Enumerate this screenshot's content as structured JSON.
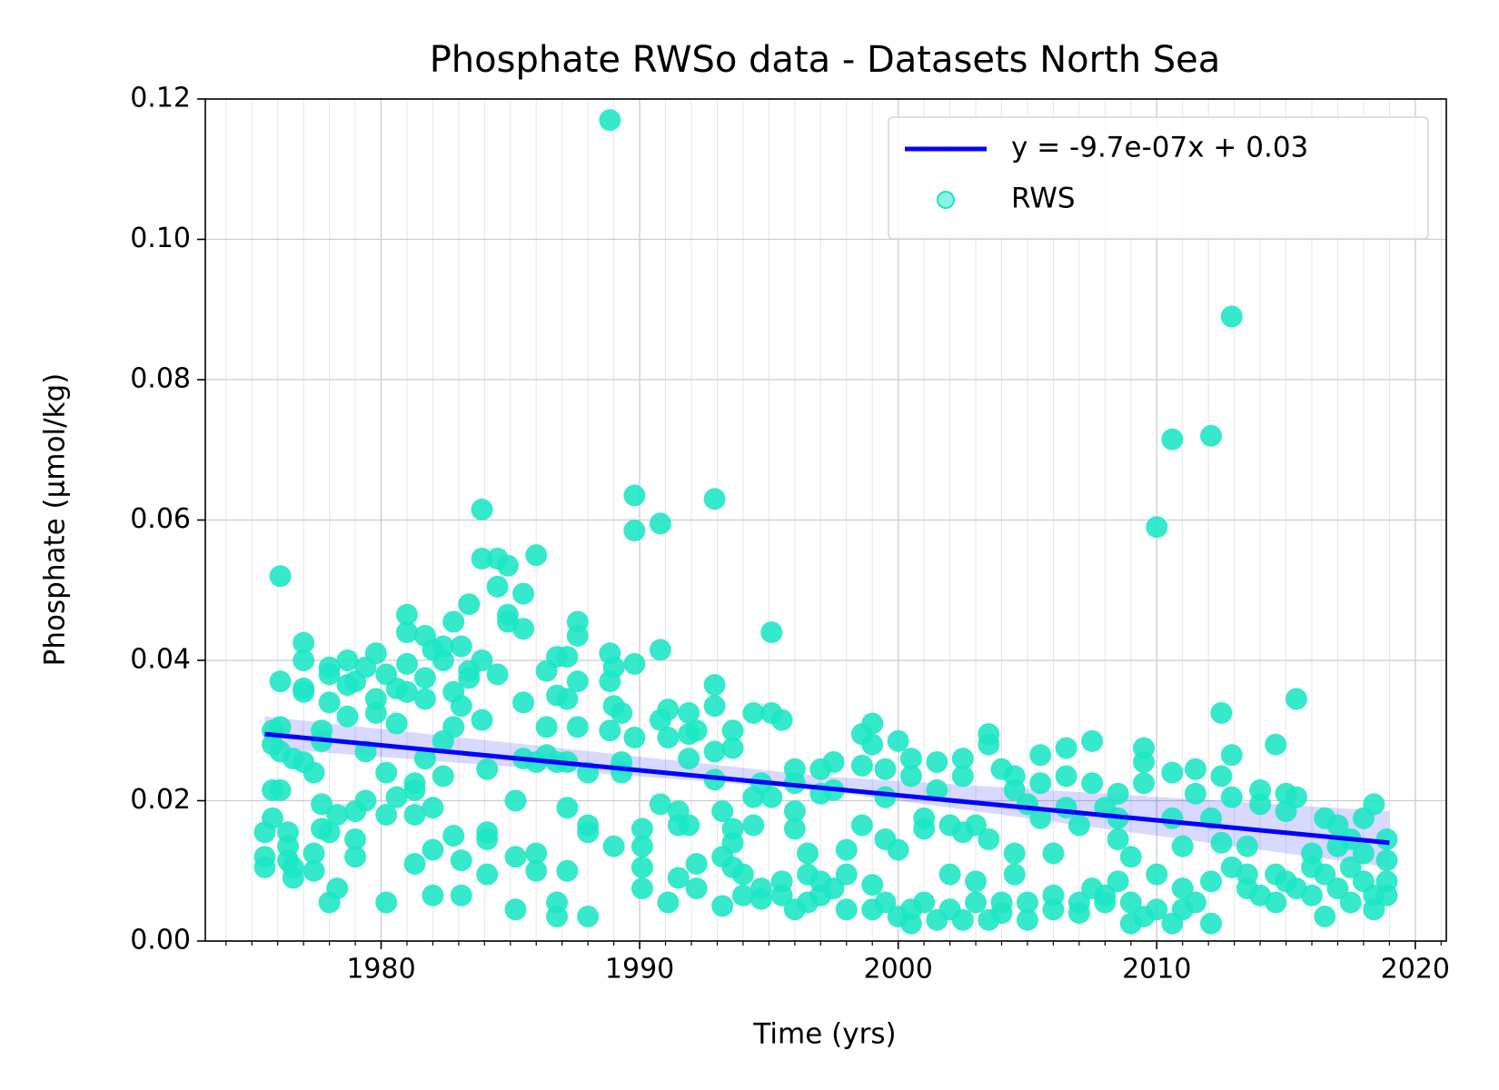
{
  "chart_data": {
    "type": "scatter",
    "title": "Phosphate RWSo data - Datasets North Sea",
    "x_label": "Time (yrs)",
    "y_label": "Phosphate (µmol/kg)",
    "xlim": [
      1973.2,
      2021.2
    ],
    "ylim": [
      0,
      0.12
    ],
    "xticks": [
      1980,
      1990,
      2000,
      2010,
      2020
    ],
    "xminorticks": [
      1974,
      1975,
      1976,
      1977,
      1978,
      1979,
      1981,
      1982,
      1983,
      1984,
      1985,
      1986,
      1987,
      1988,
      1989,
      1991,
      1992,
      1993,
      1994,
      1995,
      1996,
      1997,
      1998,
      1999,
      2001,
      2002,
      2003,
      2004,
      2005,
      2006,
      2007,
      2008,
      2009,
      2011,
      2012,
      2013,
      2014,
      2015,
      2016,
      2017,
      2018,
      2019,
      2021
    ],
    "yticks": [
      {
        "value": 0,
        "label": "0.00"
      },
      0.02,
      0.04,
      0.06,
      0.08,
      {
        "value": 0.1,
        "label": "0.10"
      },
      0.12
    ],
    "grid": true,
    "legend": "upper right",
    "band": {
      "color": "#0000ff",
      "x": [
        1975.5,
        1997,
        2019
      ],
      "lower": [
        0.0275,
        0.0215,
        0.0105
      ],
      "upper": [
        0.032,
        0.0235,
        0.0185
      ]
    },
    "series": [
      {
        "name": "y = -9.7e-07x + 0.03",
        "type": "line",
        "color": "#0000ff",
        "x": [
          1975.5,
          2019
        ],
        "values": [
          0.0295,
          0.014
        ]
      },
      {
        "name": "RWS",
        "type": "scatter",
        "color": "#1ae6c3",
        "x": [
          1975.5,
          1975.5,
          1975.5,
          1975.8,
          1975.8,
          1975.8,
          1975.8,
          1976.1,
          1976.1,
          1976.1,
          1976.1,
          1976.1,
          1976.4,
          1976.4,
          1976.4,
          1976.6,
          1976.6,
          1976.6,
          1977,
          1977,
          1977,
          1977,
          1977,
          1977.4,
          1977.4,
          1977.4,
          1977.7,
          1977.7,
          1977.7,
          1977.7,
          1978,
          1978,
          1978,
          1978,
          1978,
          1978.3,
          1978.3,
          1978.7,
          1978.7,
          1978.7,
          1979,
          1979,
          1979,
          1979,
          1979.4,
          1979.4,
          1979.4,
          1979.8,
          1979.8,
          1979.8,
          1980.2,
          1980.2,
          1980.2,
          1980.2,
          1980.6,
          1980.6,
          1980.6,
          1981,
          1981,
          1981,
          1981,
          1981.3,
          1981.3,
          1981.3,
          1981.3,
          1981.7,
          1981.7,
          1981.7,
          1981.7,
          1982,
          1982,
          1982,
          1982,
          1982.4,
          1982.4,
          1982.4,
          1982.4,
          1982.8,
          1982.8,
          1982.8,
          1982.8,
          1983.1,
          1983.1,
          1983.1,
          1983.1,
          1983.4,
          1983.4,
          1983.4,
          1983.9,
          1983.9,
          1983.9,
          1983.9,
          1984.1,
          1984.1,
          1984.1,
          1984.1,
          1984.5,
          1984.5,
          1984.5,
          1984.9,
          1984.9,
          1984.9,
          1985.2,
          1985.2,
          1985.2,
          1985.5,
          1985.5,
          1985.5,
          1985.5,
          1986,
          1986,
          1986,
          1986,
          1986.4,
          1986.4,
          1986.4,
          1986.8,
          1986.8,
          1986.8,
          1986.8,
          1986.8,
          1987.2,
          1987.2,
          1987.2,
          1987.2,
          1987.2,
          1987.6,
          1987.6,
          1987.6,
          1987.6,
          1988,
          1988,
          1988,
          1988,
          1988.85,
          1988.85,
          1988.85,
          1988.85,
          1989,
          1989,
          1989,
          1989.3,
          1989.3,
          1989.3,
          1989.8,
          1989.8,
          1989.8,
          1989.8,
          1990.1,
          1990.1,
          1990.1,
          1990.1,
          1990.8,
          1990.8,
          1990.8,
          1990.8,
          1991.1,
          1991.1,
          1991.1,
          1991.5,
          1991.5,
          1991.5,
          1991.9,
          1991.9,
          1991.9,
          1991.9,
          1992.2,
          1992.2,
          1992.2,
          1992.9,
          1992.9,
          1992.9,
          1992.9,
          1992.9,
          1993.2,
          1993.2,
          1993.2,
          1993.6,
          1993.6,
          1993.6,
          1993.6,
          1993.6,
          1994,
          1994,
          1994.4,
          1994.4,
          1994.4,
          1994.7,
          1994.7,
          1994.7,
          1995.1,
          1995.1,
          1995.1,
          1995.5,
          1995.5,
          1995.5,
          1996,
          1996,
          1996,
          1996,
          1996,
          1996.5,
          1996.5,
          1996.5,
          1997,
          1997,
          1997,
          1997,
          1997.5,
          1997.5,
          1997.5,
          1998,
          1998,
          1998,
          1998.6,
          1998.6,
          1998.6,
          1999,
          1999,
          1999,
          1999,
          1999.5,
          1999.5,
          1999.5,
          1999.5,
          2000,
          2000,
          2000,
          2000.5,
          2000.5,
          2000.5,
          2000.5,
          2001,
          2001,
          2001,
          2001.5,
          2001.5,
          2001.5,
          2002,
          2002,
          2002,
          2002.5,
          2002.5,
          2002.5,
          2002.5,
          2003,
          2003,
          2003,
          2003.5,
          2003.5,
          2003.5,
          2003.5,
          2004,
          2004,
          2004,
          2004.5,
          2004.5,
          2004.5,
          2004.5,
          2005,
          2005,
          2005,
          2005.5,
          2005.5,
          2005.5,
          2006,
          2006,
          2006,
          2006.5,
          2006.5,
          2006.5,
          2007,
          2007,
          2007,
          2007.5,
          2007.5,
          2007.5,
          2008,
          2008,
          2008,
          2008.5,
          2008.5,
          2008.5,
          2008.5,
          2009,
          2009,
          2009,
          2009.5,
          2009.5,
          2009.5,
          2009.5,
          2010,
          2010,
          2010,
          2010.6,
          2010.6,
          2010.6,
          2010.6,
          2011,
          2011,
          2011,
          2011.5,
          2011.5,
          2011.5,
          2012.1,
          2012.1,
          2012.1,
          2012.1,
          2012.5,
          2012.5,
          2012.5,
          2012.9,
          2012.9,
          2012.9,
          2012.9,
          2013.5,
          2013.5,
          2013.5,
          2014,
          2014,
          2014,
          2014.6,
          2014.6,
          2014.6,
          2015,
          2015,
          2015,
          2015.4,
          2015.4,
          2015.4,
          2016,
          2016,
          2016,
          2016.5,
          2016.5,
          2016.5,
          2017,
          2017,
          2017,
          2017.5,
          2017.5,
          2017.5,
          2018,
          2018,
          2018,
          2018.4,
          2018.4,
          2018.4,
          2018.9,
          2018.9,
          2018.9,
          2018.9
        ],
        "values": [
          0.012,
          0.0105,
          0.0155,
          0.0175,
          0.0215,
          0.028,
          0.03,
          0.0305,
          0.037,
          0.052,
          0.0215,
          0.027,
          0.0155,
          0.0135,
          0.0115,
          0.009,
          0.0105,
          0.026,
          0.0355,
          0.04,
          0.0425,
          0.0255,
          0.036,
          0.024,
          0.0125,
          0.01,
          0.0285,
          0.03,
          0.016,
          0.0195,
          0.038,
          0.034,
          0.039,
          0.0155,
          0.0055,
          0.0075,
          0.018,
          0.032,
          0.04,
          0.0365,
          0.037,
          0.0185,
          0.012,
          0.0145,
          0.02,
          0.027,
          0.039,
          0.0325,
          0.041,
          0.0345,
          0.024,
          0.018,
          0.0055,
          0.038,
          0.031,
          0.0205,
          0.036,
          0.0465,
          0.044,
          0.0395,
          0.0355,
          0.0225,
          0.018,
          0.011,
          0.0215,
          0.0435,
          0.0375,
          0.0345,
          0.026,
          0.0415,
          0.019,
          0.013,
          0.0065,
          0.042,
          0.04,
          0.0235,
          0.0285,
          0.0455,
          0.0355,
          0.0305,
          0.015,
          0.042,
          0.0115,
          0.0065,
          0.0335,
          0.0385,
          0.048,
          0.0375,
          0.0615,
          0.0545,
          0.04,
          0.0315,
          0.0155,
          0.0095,
          0.0245,
          0.0145,
          0.0505,
          0.0545,
          0.038,
          0.0535,
          0.0465,
          0.0455,
          0.02,
          0.012,
          0.0045,
          0.034,
          0.026,
          0.0495,
          0.0445,
          0.055,
          0.0255,
          0.0125,
          0.01,
          0.0385,
          0.0305,
          0.0265,
          0.0405,
          0.035,
          0.0255,
          0.0055,
          0.0035,
          0.0405,
          0.0345,
          0.0255,
          0.019,
          0.01,
          0.0455,
          0.0435,
          0.037,
          0.0305,
          0.0165,
          0.0155,
          0.0035,
          0.024,
          0.117,
          0.041,
          0.03,
          0.037,
          0.039,
          0.0335,
          0.0135,
          0.0255,
          0.024,
          0.0325,
          0.0635,
          0.0585,
          0.0395,
          0.029,
          0.0105,
          0.0075,
          0.0135,
          0.016,
          0.0595,
          0.0415,
          0.0315,
          0.0195,
          0.033,
          0.029,
          0.0055,
          0.0185,
          0.0165,
          0.009,
          0.0325,
          0.0295,
          0.026,
          0.0165,
          0.011,
          0.0075,
          0.03,
          0.063,
          0.0365,
          0.0335,
          0.027,
          0.023,
          0.0185,
          0.005,
          0.012,
          0.0275,
          0.03,
          0.014,
          0.0105,
          0.016,
          0.0095,
          0.0065,
          0.0325,
          0.0205,
          0.0165,
          0.0225,
          0.0075,
          0.006,
          0.044,
          0.0325,
          0.0205,
          0.0065,
          0.0085,
          0.0315,
          0.0245,
          0.0225,
          0.016,
          0.0185,
          0.0045,
          0.0095,
          0.0055,
          0.0125,
          0.0245,
          0.021,
          0.0065,
          0.0085,
          0.0255,
          0.0215,
          0.0075,
          0.0045,
          0.0095,
          0.013,
          0.0295,
          0.025,
          0.0165,
          0.031,
          0.028,
          0.008,
          0.0045,
          0.0245,
          0.0205,
          0.0145,
          0.0055,
          0.0035,
          0.013,
          0.0285,
          0.026,
          0.0235,
          0.0045,
          0.0025,
          0.0175,
          0.016,
          0.0055,
          0.0255,
          0.0215,
          0.003,
          0.0095,
          0.0165,
          0.0045,
          0.026,
          0.0235,
          0.0155,
          0.003,
          0.0085,
          0.0055,
          0.0165,
          0.0295,
          0.028,
          0.0145,
          0.003,
          0.0245,
          0.0055,
          0.004,
          0.0235,
          0.0215,
          0.0125,
          0.0095,
          0.0055,
          0.003,
          0.0195,
          0.0265,
          0.0225,
          0.0175,
          0.0045,
          0.0065,
          0.0125,
          0.0275,
          0.0235,
          0.019,
          0.0055,
          0.004,
          0.0165,
          0.0285,
          0.0225,
          0.0075,
          0.0055,
          0.0065,
          0.019,
          0.0175,
          0.021,
          0.0145,
          0.0085,
          0.0055,
          0.0025,
          0.012,
          0.0275,
          0.0255,
          0.0225,
          0.0035,
          0.059,
          0.0095,
          0.0045,
          0.0715,
          0.024,
          0.0175,
          0.0025,
          0.0135,
          0.0075,
          0.0045,
          0.0245,
          0.021,
          0.0055,
          0.072,
          0.0175,
          0.0085,
          0.0025,
          0.0325,
          0.0235,
          0.014,
          0.089,
          0.0265,
          0.0205,
          0.0105,
          0.0095,
          0.0075,
          0.0135,
          0.0215,
          0.0195,
          0.0065,
          0.028,
          0.0095,
          0.0055,
          0.021,
          0.0185,
          0.0085,
          0.0345,
          0.0205,
          0.0075,
          0.0105,
          0.0125,
          0.0065,
          0.0175,
          0.0035,
          0.0095,
          0.0165,
          0.0135,
          0.0075,
          0.0145,
          0.0055,
          0.0105,
          0.0175,
          0.0125,
          0.0085,
          0.0195,
          0.0065,
          0.0045,
          0.0145,
          0.0115,
          0.0065,
          0.0085
        ]
      }
    ]
  }
}
